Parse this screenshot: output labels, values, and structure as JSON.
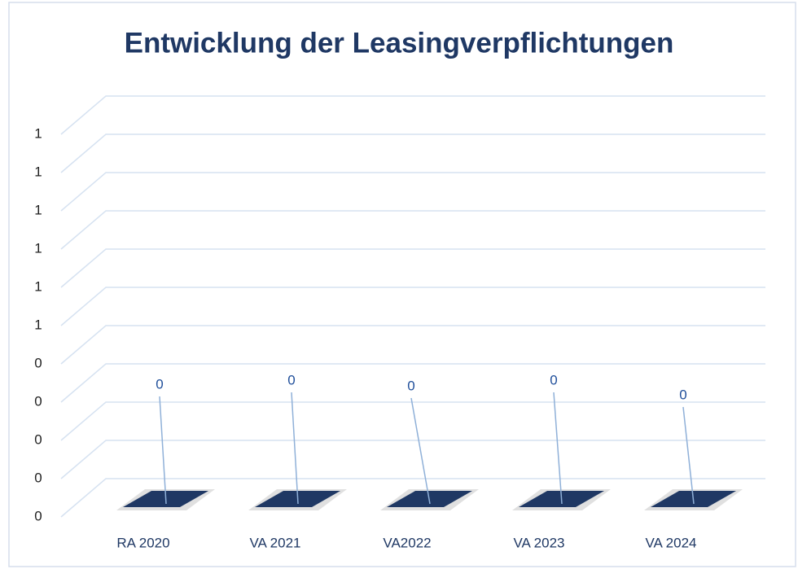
{
  "chart_data": {
    "type": "bar3d",
    "title": "Entwicklung der Leasingverpflichtungen",
    "categories": [
      "RA 2020",
      "VA 2021",
      "VA2022",
      "VA 2023",
      "VA 2024"
    ],
    "values": [
      0,
      0,
      0,
      0,
      0
    ],
    "color": "#1f3864",
    "ylim": [
      0,
      1
    ],
    "yticks": [
      0,
      {
        "value": 0.1,
        "label": "0"
      },
      {
        "value": 0.2,
        "label": "0"
      },
      {
        "value": 0.3,
        "label": "0"
      },
      {
        "value": 0.4,
        "label": "0"
      },
      {
        "value": 0.5,
        "label": "1"
      },
      {
        "value": 0.6,
        "label": "1"
      },
      {
        "value": 0.7,
        "label": "1"
      },
      {
        "value": 0.8,
        "label": "1"
      },
      {
        "value": 0.9,
        "label": "1"
      },
      1
    ],
    "grid": true
  }
}
